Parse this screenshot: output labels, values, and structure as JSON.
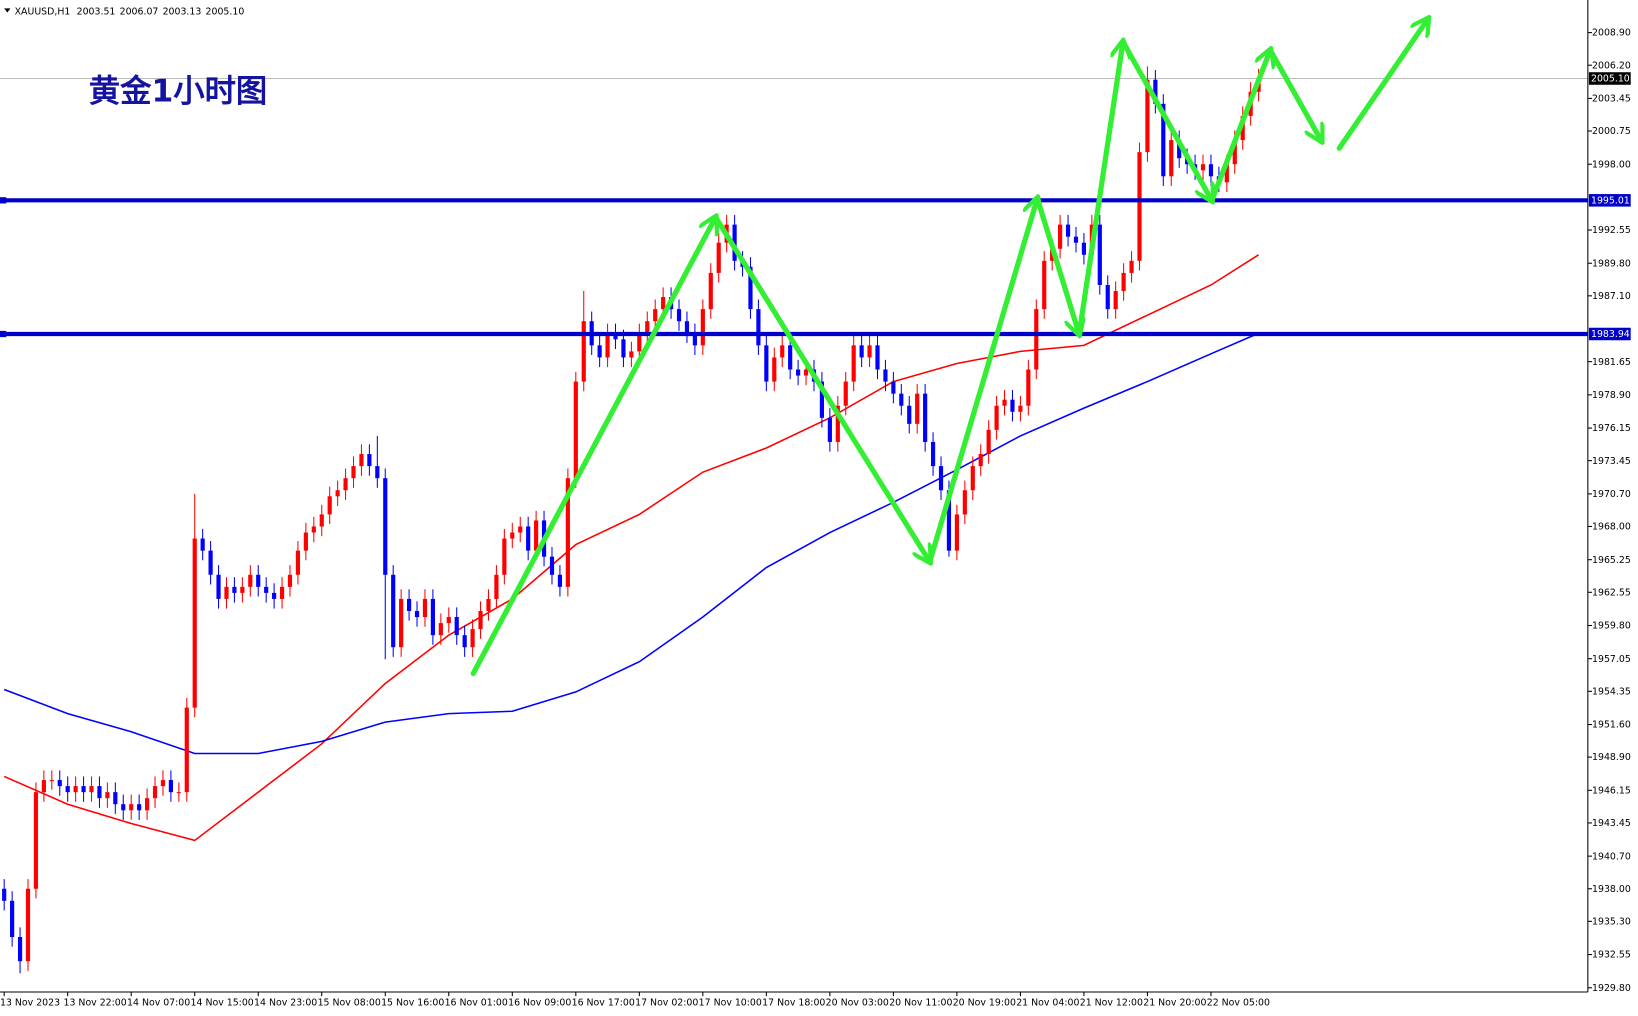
{
  "chart_data": {
    "type": "candlestick",
    "symbol": "XAUUSD,H1",
    "header_ohlc": [
      "2003.51",
      "2006.07",
      "2003.13",
      "2005.10"
    ],
    "title": "黄金1小时图",
    "up_color": "#ff0000",
    "down_color": "#0000ff",
    "ylim": [
      1929.45,
      2011.6
    ],
    "yticks": [
      {
        "value": 1929.8,
        "label": "1929.80"
      },
      {
        "value": 1932.55,
        "label": "1932.55"
      },
      {
        "value": 1935.3,
        "label": "1935.30"
      },
      {
        "value": 1938,
        "label": "1938.00"
      },
      {
        "value": 1940.7,
        "label": "1940.70"
      },
      {
        "value": 1943.45,
        "label": "1943.45"
      },
      {
        "value": 1946.15,
        "label": "1946.15"
      },
      {
        "value": 1948.9,
        "label": "1948.90"
      },
      {
        "value": 1951.6,
        "label": "1951.60"
      },
      {
        "value": 1954.35,
        "label": "1954.35"
      },
      {
        "value": 1957.05,
        "label": "1957.05"
      },
      {
        "value": 1959.8,
        "label": "1959.80"
      },
      {
        "value": 1962.55,
        "label": "1962.55"
      },
      {
        "value": 1965.25,
        "label": "1965.25"
      },
      {
        "value": 1968,
        "label": "1968.00"
      },
      {
        "value": 1970.7,
        "label": "1970.70"
      },
      {
        "value": 1973.45,
        "label": "1973.45"
      },
      {
        "value": 1976.15,
        "label": "1976.15"
      },
      {
        "value": 1978.9,
        "label": "1978.90"
      },
      {
        "value": 1981.65,
        "label": "1981.65"
      },
      {
        "value": 1987.1,
        "label": "1987.10"
      },
      {
        "value": 1989.8,
        "label": "1989.80"
      },
      {
        "value": 1992.55,
        "label": "1992.55"
      },
      {
        "value": 1998,
        "label": "1998.00"
      },
      {
        "value": 2000.75,
        "label": "2000.75"
      },
      {
        "value": 2003.45,
        "label": "2003.45"
      },
      {
        "value": 2006.2,
        "label": "2006.20"
      },
      {
        "value": 2008.9,
        "label": "2008.90"
      }
    ],
    "levels": [
      {
        "value": 1995.01,
        "color": "#0000cc"
      },
      {
        "value": 1983.94,
        "color": "#0000cc"
      }
    ],
    "current_price": {
      "value": 2005.1,
      "label": "2005.10"
    },
    "categories": [
      "13 Nov 2023",
      null,
      null,
      null,
      null,
      null,
      null,
      null,
      "13 Nov 22:00",
      null,
      null,
      null,
      null,
      null,
      null,
      null,
      "14 Nov 07:00",
      null,
      null,
      null,
      null,
      null,
      null,
      null,
      "14 Nov 15:00",
      null,
      null,
      null,
      null,
      null,
      null,
      null,
      "14 Nov 23:00",
      null,
      null,
      null,
      null,
      null,
      null,
      null,
      "15 Nov 08:00",
      null,
      null,
      null,
      null,
      null,
      null,
      null,
      "15 Nov 16:00",
      null,
      null,
      null,
      null,
      null,
      null,
      null,
      "16 Nov 01:00",
      null,
      null,
      null,
      null,
      null,
      null,
      null,
      "16 Nov 09:00",
      null,
      null,
      null,
      null,
      null,
      null,
      null,
      "16 Nov 17:00",
      null,
      null,
      null,
      null,
      null,
      null,
      null,
      "17 Nov 02:00",
      null,
      null,
      null,
      null,
      null,
      null,
      null,
      "17 Nov 10:00",
      null,
      null,
      null,
      null,
      null,
      null,
      null,
      "17 Nov 18:00",
      null,
      null,
      null,
      null,
      null,
      null,
      null,
      "20 Nov 03:00",
      null,
      null,
      null,
      null,
      null,
      null,
      null,
      "20 Nov 11:00",
      null,
      null,
      null,
      null,
      null,
      null,
      null,
      "20 Nov 19:00",
      null,
      null,
      null,
      null,
      null,
      null,
      null,
      "21 Nov 04:00",
      null,
      null,
      null,
      null,
      null,
      null,
      null,
      "21 Nov 12:00",
      null,
      null,
      null,
      null,
      null,
      null,
      null,
      "21 Nov 20:00",
      null,
      null,
      null,
      null,
      null,
      null,
      null,
      "22 Nov 05:00",
      null,
      null,
      null,
      null,
      null,
      null
    ],
    "open": [
      1938,
      1937,
      1934,
      1932,
      1938,
      1946,
      1947,
      1947,
      1946.5,
      1946,
      1946.5,
      1946,
      1946.5,
      1945.5,
      1946,
      1945,
      1944.5,
      1945,
      1944.5,
      1945.5,
      1946.5,
      1947,
      1946,
      1946,
      1953,
      1967,
      1966,
      1964,
      1962,
      1963,
      1962.5,
      1963,
      1964,
      1963,
      1962.5,
      1962,
      1963,
      1964,
      1966,
      1967.5,
      1968,
      1969,
      1970.5,
      1971,
      1972,
      1973,
      1974,
      1973,
      1972,
      1964,
      1958,
      1962,
      1961,
      1960.5,
      1962,
      1959,
      1960,
      1960.5,
      1959,
      1958,
      1959.5,
      1961,
      1962,
      1964,
      1967,
      1967.5,
      1968,
      1966,
      1968.5,
      1965.5,
      1964,
      1963,
      1972,
      1980,
      1985,
      1983,
      1982,
      1984,
      1983.5,
      1982,
      1982.5,
      1984,
      1985,
      1986,
      1987,
      1986,
      1985,
      1984,
      1983,
      1986,
      1989,
      1991.5,
      1993,
      1990,
      1989.5,
      1986,
      1983,
      1980,
      1982,
      1983,
      1981,
      1980.5,
      1981,
      1980,
      1977,
      1975,
      1978,
      1980,
      1983,
      1982,
      1983,
      1981,
      1980,
      1979,
      1978,
      1976.5,
      1979,
      1975,
      1973,
      1971,
      1966,
      1969,
      1971,
      1973,
      1974,
      1976,
      1978,
      1978.5,
      1977.5,
      1978,
      1981,
      1986,
      1990,
      1991,
      1993,
      1992,
      1991.5,
      1990.5,
      1993,
      1988,
      1986,
      1987.5,
      1989,
      1990,
      1999,
      2005,
      2003,
      1997,
      2000,
      1998.5,
      1998,
      1997.5,
      1998,
      1997,
      1996.5,
      1998,
      2000,
      2002,
      2004
    ],
    "high": [
      1938.8,
      1937.8,
      1934.8,
      1938.8,
      1946.8,
      1947.8,
      1947.8,
      1947.8,
      1947.3,
      1947.3,
      1947.3,
      1947.3,
      1947.3,
      1946.8,
      1946.8,
      1945.8,
      1945.8,
      1945.8,
      1946.3,
      1947.3,
      1947.8,
      1947.8,
      1946.8,
      1953.8,
      1970.7,
      1967.8,
      1966.8,
      1964.8,
      1963.8,
      1963.8,
      1963.8,
      1964.8,
      1964.8,
      1963.8,
      1963.3,
      1963.8,
      1964.8,
      1966.8,
      1968.3,
      1968.8,
      1969.8,
      1971.3,
      1971.8,
      1972.8,
      1973.8,
      1974.8,
      1974.8,
      1975.5,
      1972.8,
      1964.8,
      1962.8,
      1962.8,
      1961.8,
      1962.8,
      1962.8,
      1960.8,
      1961.3,
      1961.3,
      1959.8,
      1960.3,
      1961.8,
      1962.8,
      1964.8,
      1967.8,
      1968.3,
      1968.8,
      1968.8,
      1969.3,
      1969.3,
      1966.3,
      1964.8,
      1972.8,
      1980.8,
      1987.5,
      1985.8,
      1983.8,
      1984.8,
      1984.8,
      1984.3,
      1983.3,
      1984.8,
      1985.8,
      1986.8,
      1987.8,
      1987.8,
      1986.8,
      1985.8,
      1984.8,
      1986.8,
      1989.8,
      1992.3,
      1993.8,
      1993.8,
      1990.8,
      1990.3,
      1986.8,
      1983.8,
      1982.8,
      1983.8,
      1983.8,
      1981.8,
      1981.8,
      1981.8,
      1980.8,
      1977.8,
      1978.8,
      1980.8,
      1983.8,
      1983.8,
      1983.8,
      1983.8,
      1981.8,
      1980.8,
      1979.8,
      1978.8,
      1979.8,
      1979.8,
      1975.8,
      1973.8,
      1971.8,
      1969.8,
      1971.8,
      1973.8,
      1974.8,
      1976.8,
      1978.8,
      1979.3,
      1979.3,
      1978.8,
      1981.8,
      1986.8,
      1990.8,
      1991.8,
      1993.8,
      1993.8,
      1992.8,
      1992.3,
      1993.8,
      1993.8,
      1988.8,
      1988.3,
      1989.8,
      1990.8,
      1999.8,
      2006.1,
      2005.8,
      2003.8,
      2000.8,
      2000.8,
      1999.3,
      1998.8,
      1998.8,
      1998.8,
      1997.8,
      1998.8,
      2000.8,
      2002.8,
      2004.8,
      2005.9
    ],
    "low": [
      1936.2,
      1933.2,
      1931,
      1931.2,
      1937.2,
      1945.2,
      1946.2,
      1945.7,
      1945.2,
      1945.2,
      1945.2,
      1945.2,
      1944.7,
      1944.7,
      1944.2,
      1943.7,
      1943.7,
      1943.7,
      1943.7,
      1944.7,
      1945.7,
      1945.2,
      1945.2,
      1945.2,
      1952.2,
      1965.2,
      1963.2,
      1961.2,
      1961.2,
      1961.7,
      1961.7,
      1962.2,
      1962.2,
      1961.7,
      1961.2,
      1961.2,
      1962.2,
      1963.2,
      1965.2,
      1966.7,
      1967.2,
      1968.2,
      1969.7,
      1970.2,
      1971.2,
      1972.2,
      1972.2,
      1971.2,
      1957,
      1957.2,
      1957.2,
      1960.2,
      1959.7,
      1959.7,
      1958.2,
      1958.2,
      1959.2,
      1958.2,
      1957.2,
      1957.2,
      1958.7,
      1960.2,
      1961.2,
      1963.2,
      1966.2,
      1966.7,
      1965.2,
      1965.2,
      1964.7,
      1963.2,
      1962.2,
      1962.2,
      1971.2,
      1979.2,
      1982.2,
      1981.2,
      1981.2,
      1982.7,
      1981.2,
      1981.2,
      1981.7,
      1983.2,
      1984.2,
      1985.2,
      1985.2,
      1984.2,
      1983.2,
      1982.2,
      1982.2,
      1985.2,
      1988.2,
      1990.7,
      1989.2,
      1988.7,
      1985.2,
      1982.2,
      1979.2,
      1979.2,
      1981.2,
      1980.2,
      1979.7,
      1979.7,
      1979.2,
      1976.2,
      1974.2,
      1974.2,
      1977.2,
      1979.2,
      1981.2,
      1981.2,
      1980.2,
      1979.2,
      1978.2,
      1977.2,
      1975.7,
      1975.7,
      1974.2,
      1972.2,
      1970.2,
      1965.5,
      1965.2,
      1968.2,
      1970.2,
      1972.2,
      1973.2,
      1975.2,
      1977.2,
      1976.7,
      1976.7,
      1977.2,
      1980.2,
      1985.2,
      1989.2,
      1990.2,
      1991.2,
      1990.7,
      1989.7,
      1989.7,
      1987.2,
      1985.2,
      1985.2,
      1986.7,
      1988.2,
      1989.2,
      1998.2,
      2002.2,
      1996.2,
      1996.2,
      1997.7,
      1997.2,
      1996.7,
      1996.7,
      1996.2,
      1995.7,
      1995.7,
      1997.2,
      1999.2,
      2001.2,
      2003.2
    ],
    "close": [
      1937,
      1934,
      1932,
      1938,
      1946,
      1947,
      1947,
      1946.5,
      1946,
      1946.5,
      1946,
      1946.5,
      1945.5,
      1946,
      1945,
      1944.5,
      1945,
      1944.5,
      1945.5,
      1946.5,
      1947,
      1946,
      1946,
      1953,
      1967,
      1966,
      1964,
      1962,
      1963,
      1962.5,
      1963,
      1964,
      1963,
      1962.5,
      1962,
      1963,
      1964,
      1966,
      1967.5,
      1968,
      1969,
      1970.5,
      1971,
      1972,
      1973,
      1974,
      1973,
      1972,
      1964,
      1958,
      1962,
      1961,
      1960.5,
      1962,
      1959,
      1960,
      1960.5,
      1959,
      1958,
      1959.5,
      1961,
      1962,
      1964,
      1967,
      1967.5,
      1968,
      1966,
      1968.5,
      1965.5,
      1964,
      1963,
      1972,
      1980,
      1985,
      1983,
      1982,
      1984,
      1983.5,
      1982,
      1982.5,
      1984,
      1985,
      1986,
      1987,
      1986,
      1985,
      1984,
      1983,
      1986,
      1989,
      1991.5,
      1993,
      1990,
      1989.5,
      1986,
      1983,
      1980,
      1982,
      1983,
      1981,
      1980.5,
      1981,
      1980,
      1977,
      1975,
      1978,
      1980,
      1983,
      1982,
      1983,
      1981,
      1980,
      1979,
      1978,
      1976.5,
      1979,
      1975,
      1973,
      1971,
      1966,
      1969,
      1971,
      1973,
      1974,
      1976,
      1978,
      1978.5,
      1977.5,
      1978,
      1981,
      1986,
      1990,
      1991,
      1993,
      1992,
      1991.5,
      1990.5,
      1993,
      1988,
      1986,
      1987.5,
      1989,
      1990,
      1999,
      2005,
      2003,
      1997,
      2000,
      1998.5,
      1998,
      1997.5,
      1998,
      1997,
      1996.5,
      1998,
      2000,
      2002,
      2004,
      2005.1
    ],
    "moving_averages": [
      {
        "color": "#ff0000",
        "x": [
          0,
          8,
          16,
          24,
          32,
          40,
          48,
          56,
          64,
          72,
          80,
          88,
          96,
          104,
          112,
          120,
          128,
          136,
          144,
          152,
          158
        ],
        "values": [
          1947.3,
          1945,
          1943.4,
          1942,
          1946,
          1950,
          1955,
          1959,
          1962,
          1966.5,
          1969,
          1972.5,
          1974.5,
          1977,
          1980,
          1981.5,
          1982.5,
          1983,
          1985.5,
          1988,
          1990.5
        ]
      },
      {
        "color": "#0000ff",
        "x": [
          0,
          8,
          16,
          24,
          32,
          40,
          48,
          56,
          64,
          72,
          80,
          88,
          96,
          104,
          112,
          120,
          128,
          136,
          144,
          152,
          158
        ],
        "values": [
          1954.5,
          1952.5,
          1951,
          1949.2,
          1949.2,
          1950.2,
          1951.8,
          1952.5,
          1952.7,
          1954.3,
          1956.8,
          1960.5,
          1964.6,
          1967.5,
          1970,
          1972.7,
          1975.5,
          1977.8,
          1980,
          1982.3,
          1984
        ]
      }
    ]
  }
}
